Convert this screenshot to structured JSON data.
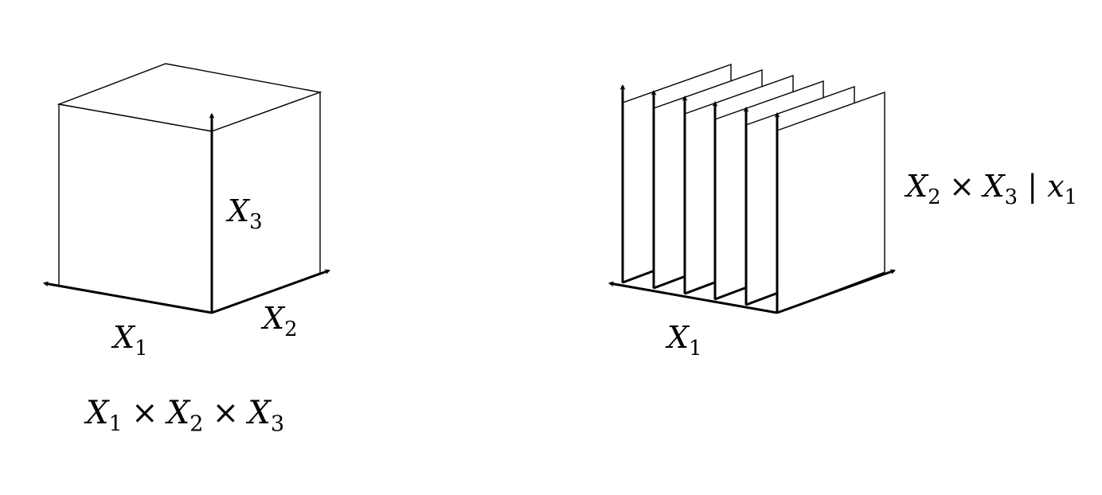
{
  "left_panel": {
    "x3_var": "X",
    "x3_sub": "3",
    "x2_var": "X",
    "x2_sub": "2",
    "x1_var": "X",
    "x1_sub": "1",
    "product_caption": {
      "a_var": "X",
      "a_sub": "1",
      "times1": "×",
      "b_var": "X",
      "b_sub": "2",
      "times2": "×",
      "c_var": "X",
      "c_sub": "3"
    }
  },
  "right_panel": {
    "x1_var": "X",
    "x1_sub": "1",
    "conditional_caption": {
      "a_var": "X",
      "a_sub": "2",
      "times": "×",
      "b_var": "X",
      "b_sub": "3",
      "bar": "|",
      "c_var": "x",
      "c_sub": "1"
    }
  },
  "colors": {
    "ink": "#000000",
    "paper": "#ffffff"
  }
}
